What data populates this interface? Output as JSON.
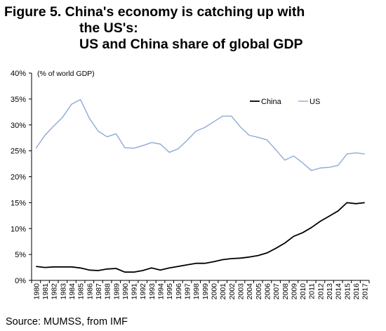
{
  "title": {
    "line1": "Figure 5. China's economy is catching up with",
    "line2": "the US's:",
    "line3": "US and China share of global GDP"
  },
  "source": "Source: MUMSS, from IMF",
  "chart_data": {
    "type": "line",
    "unit_label": "(% of world GDP)",
    "x": [
      "1980",
      "1981",
      "1982",
      "1983",
      "1984",
      "1985",
      "1986",
      "1987",
      "1988",
      "1989",
      "1990",
      "1991",
      "1992",
      "1993",
      "1994",
      "1995",
      "1996",
      "1997",
      "1998",
      "1999",
      "2000",
      "2001",
      "2002",
      "2003",
      "2004",
      "2005",
      "2006",
      "2007",
      "2008",
      "2009",
      "2010",
      "2011",
      "2012",
      "2013",
      "2014",
      "2015",
      "2016",
      "2017"
    ],
    "ylim": [
      0,
      40
    ],
    "yticks": [
      0,
      5,
      10,
      15,
      20,
      25,
      30,
      35,
      40
    ],
    "ytick_labels": [
      "0%",
      "5%",
      "10%",
      "15%",
      "20%",
      "25%",
      "30%",
      "35%",
      "40%"
    ],
    "legend_position": "top-right",
    "grid": false,
    "series": [
      {
        "name": "China",
        "color": "#000000",
        "values": [
          2.7,
          2.5,
          2.6,
          2.6,
          2.6,
          2.4,
          2.0,
          1.9,
          2.2,
          2.3,
          1.6,
          1.6,
          1.9,
          2.4,
          2.0,
          2.4,
          2.7,
          3.0,
          3.3,
          3.3,
          3.6,
          4.0,
          4.2,
          4.3,
          4.5,
          4.8,
          5.3,
          6.2,
          7.2,
          8.5,
          9.2,
          10.2,
          11.4,
          12.4,
          13.4,
          15.0,
          14.8,
          15.0
        ]
      },
      {
        "name": "US",
        "color": "#8fa9d8",
        "values": [
          25.5,
          28.0,
          29.8,
          31.5,
          34.0,
          34.9,
          31.3,
          28.8,
          27.7,
          28.3,
          25.6,
          25.5,
          26.0,
          26.6,
          26.3,
          24.7,
          25.4,
          27.0,
          28.8,
          29.5,
          30.6,
          31.7,
          31.7,
          29.6,
          28.0,
          27.6,
          27.1,
          25.2,
          23.2,
          24.0,
          22.7,
          21.2,
          21.7,
          21.8,
          22.2,
          24.4,
          24.6,
          24.4
        ]
      }
    ]
  }
}
